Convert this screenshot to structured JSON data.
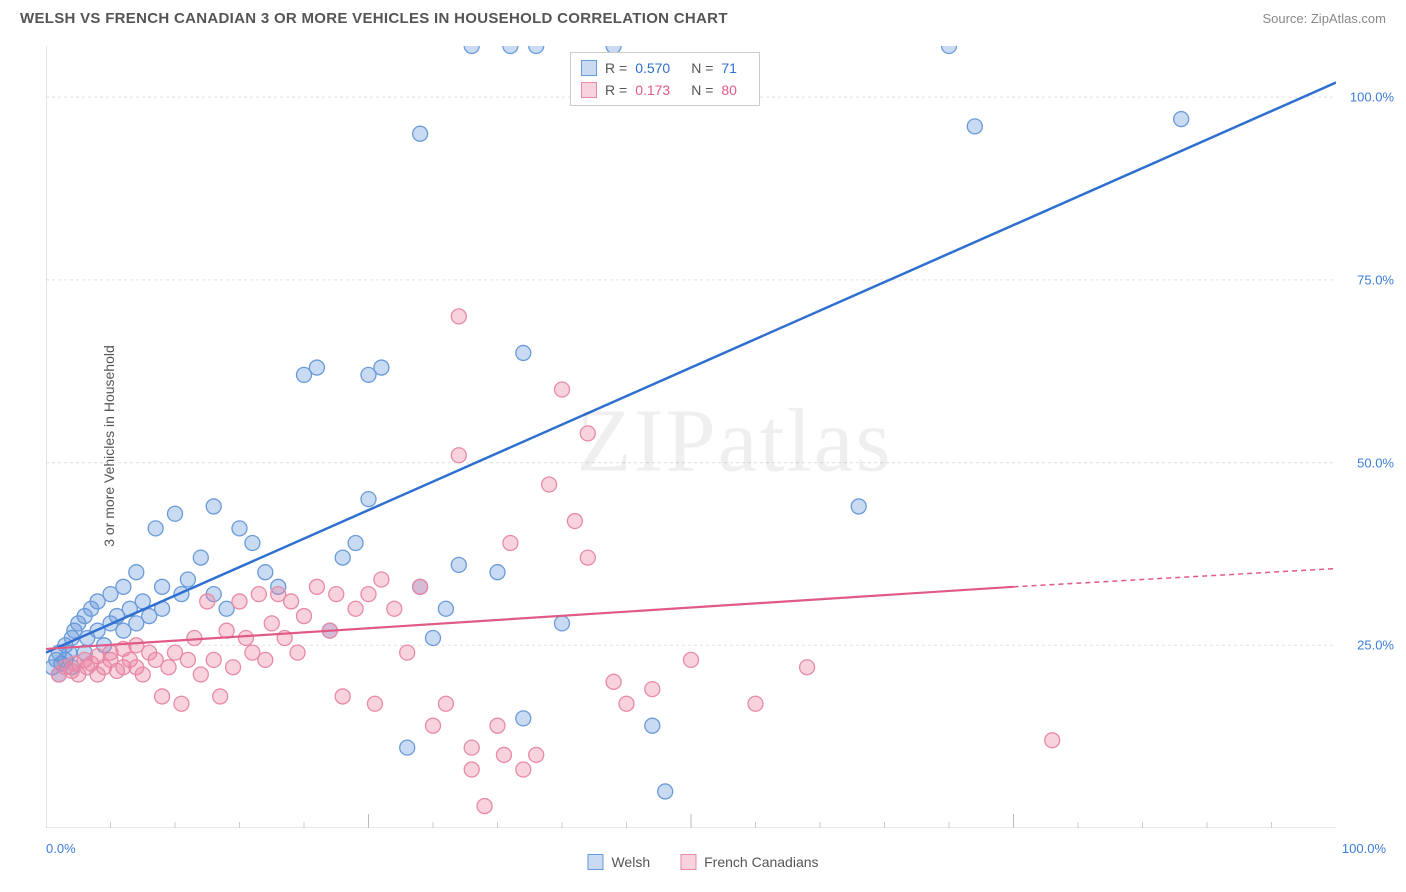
{
  "header": {
    "title": "WELSH VS FRENCH CANADIAN 3 OR MORE VEHICLES IN HOUSEHOLD CORRELATION CHART",
    "source_prefix": "Source: ",
    "source_name": "ZipAtlas.com"
  },
  "y_axis_label": "3 or more Vehicles in Household",
  "watermark": "ZIPatlas",
  "chart": {
    "type": "scatter",
    "xlim": [
      0,
      100
    ],
    "ylim": [
      0,
      107
    ],
    "y_ticks": [
      25,
      50,
      75,
      100
    ],
    "y_tick_labels": [
      "25.0%",
      "50.0%",
      "75.0%",
      "100.0%"
    ],
    "x_axis_left": "0.0%",
    "x_axis_right": "100.0%",
    "grid_color": "#e0e0e0",
    "axis_color": "#cccccc",
    "background_color": "#ffffff",
    "series": [
      {
        "name": "Welsh",
        "color_fill": "rgba(100,150,220,0.35)",
        "color_stroke": "#6a9bd8",
        "line_color": "#2e6fd0",
        "r_value": "0.570",
        "n_value": "71",
        "trend": {
          "x1": 0,
          "y1": 24,
          "x2": 100,
          "y2": 102
        },
        "points": [
          [
            0.5,
            22
          ],
          [
            0.8,
            23
          ],
          [
            1,
            21
          ],
          [
            1,
            24
          ],
          [
            1.2,
            22.5
          ],
          [
            1.5,
            23
          ],
          [
            1.5,
            25
          ],
          [
            1.8,
            24
          ],
          [
            2,
            22
          ],
          [
            2,
            26
          ],
          [
            2.2,
            27
          ],
          [
            2.5,
            28
          ],
          [
            3,
            24
          ],
          [
            3,
            29
          ],
          [
            3.2,
            26
          ],
          [
            3.5,
            30
          ],
          [
            4,
            27
          ],
          [
            4,
            31
          ],
          [
            4.5,
            25
          ],
          [
            5,
            28
          ],
          [
            5,
            32
          ],
          [
            5.5,
            29
          ],
          [
            6,
            27
          ],
          [
            6,
            33
          ],
          [
            6.5,
            30
          ],
          [
            7,
            28
          ],
          [
            7,
            35
          ],
          [
            7.5,
            31
          ],
          [
            8,
            29
          ],
          [
            8.5,
            41
          ],
          [
            9,
            30
          ],
          [
            9,
            33
          ],
          [
            10,
            43
          ],
          [
            10.5,
            32
          ],
          [
            11,
            34
          ],
          [
            12,
            37
          ],
          [
            13,
            32
          ],
          [
            13,
            44
          ],
          [
            14,
            30
          ],
          [
            15,
            41
          ],
          [
            16,
            39
          ],
          [
            17,
            35
          ],
          [
            18,
            33
          ],
          [
            20,
            62
          ],
          [
            21,
            63
          ],
          [
            22,
            27
          ],
          [
            23,
            37
          ],
          [
            24,
            39
          ],
          [
            25,
            45
          ],
          [
            25,
            62
          ],
          [
            26,
            63
          ],
          [
            28,
            11
          ],
          [
            29,
            33
          ],
          [
            29,
            95
          ],
          [
            30,
            26
          ],
          [
            31,
            30
          ],
          [
            32,
            36
          ],
          [
            33,
            107
          ],
          [
            35,
            35
          ],
          [
            36,
            107
          ],
          [
            37,
            15
          ],
          [
            37,
            65
          ],
          [
            38,
            107
          ],
          [
            40,
            28
          ],
          [
            44,
            107
          ],
          [
            47,
            14
          ],
          [
            48,
            5
          ],
          [
            63,
            44
          ],
          [
            70,
            107
          ],
          [
            72,
            96
          ],
          [
            88,
            97
          ]
        ]
      },
      {
        "name": "French Canadians",
        "color_fill": "rgba(235,130,160,0.35)",
        "color_stroke": "#e88aa5",
        "line_color": "#e05a85",
        "r_value": "0.173",
        "n_value": "80",
        "trend_solid": {
          "x1": 0,
          "y1": 24.5,
          "x2": 75,
          "y2": 33
        },
        "trend_dash": {
          "x1": 75,
          "y1": 33,
          "x2": 100,
          "y2": 35.5
        },
        "points": [
          [
            1,
            21
          ],
          [
            1.5,
            22
          ],
          [
            2,
            21.5
          ],
          [
            2.2,
            22.5
          ],
          [
            2.5,
            21
          ],
          [
            3,
            23
          ],
          [
            3.2,
            22
          ],
          [
            3.5,
            22.5
          ],
          [
            4,
            23.5
          ],
          [
            4,
            21
          ],
          [
            4.5,
            22
          ],
          [
            5,
            23
          ],
          [
            5,
            24
          ],
          [
            5.5,
            21.5
          ],
          [
            6,
            22
          ],
          [
            6,
            24.5
          ],
          [
            6.5,
            23
          ],
          [
            7,
            22
          ],
          [
            7,
            25
          ],
          [
            7.5,
            21
          ],
          [
            8,
            24
          ],
          [
            8.5,
            23
          ],
          [
            9,
            18
          ],
          [
            9.5,
            22
          ],
          [
            10,
            24
          ],
          [
            10.5,
            17
          ],
          [
            11,
            23
          ],
          [
            11.5,
            26
          ],
          [
            12,
            21
          ],
          [
            12.5,
            31
          ],
          [
            13,
            23
          ],
          [
            13.5,
            18
          ],
          [
            14,
            27
          ],
          [
            14.5,
            22
          ],
          [
            15,
            31
          ],
          [
            15.5,
            26
          ],
          [
            16,
            24
          ],
          [
            16.5,
            32
          ],
          [
            17,
            23
          ],
          [
            17.5,
            28
          ],
          [
            18,
            32
          ],
          [
            18.5,
            26
          ],
          [
            19,
            31
          ],
          [
            19.5,
            24
          ],
          [
            20,
            29
          ],
          [
            21,
            33
          ],
          [
            22,
            27
          ],
          [
            22.5,
            32
          ],
          [
            23,
            18
          ],
          [
            24,
            30
          ],
          [
            25,
            32
          ],
          [
            25.5,
            17
          ],
          [
            26,
            34
          ],
          [
            27,
            30
          ],
          [
            28,
            24
          ],
          [
            29,
            33
          ],
          [
            30,
            14
          ],
          [
            31,
            17
          ],
          [
            32,
            51
          ],
          [
            32,
            70
          ],
          [
            33,
            11
          ],
          [
            33,
            8
          ],
          [
            34,
            3
          ],
          [
            35,
            14
          ],
          [
            35.5,
            10
          ],
          [
            36,
            39
          ],
          [
            37,
            8
          ],
          [
            38,
            10
          ],
          [
            39,
            47
          ],
          [
            40,
            60
          ],
          [
            41,
            42
          ],
          [
            42,
            54
          ],
          [
            42,
            37
          ],
          [
            44,
            20
          ],
          [
            45,
            17
          ],
          [
            47,
            19
          ],
          [
            50,
            23
          ],
          [
            55,
            17
          ],
          [
            59,
            22
          ],
          [
            78,
            12
          ]
        ]
      }
    ]
  },
  "legend_box": {
    "r_label": "R =",
    "n_label": "N ="
  },
  "bottom_legend": {
    "items": [
      "Welsh",
      "French Canadians"
    ]
  }
}
